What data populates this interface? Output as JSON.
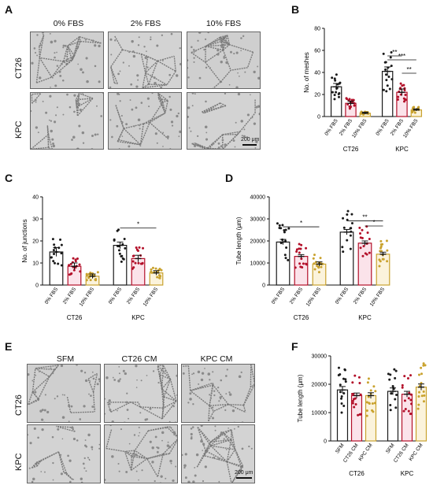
{
  "figure": {
    "panel_labels": [
      "A",
      "B",
      "C",
      "D",
      "E",
      "F"
    ]
  },
  "panel_a": {
    "columns": [
      "0% FBS",
      "2% FBS",
      "10% FBS"
    ],
    "rows": [
      "CT26",
      "KPC"
    ],
    "scale_bar": "200 μm"
  },
  "panel_e": {
    "columns": [
      "SFM",
      "CT26 CM",
      "KPC CM"
    ],
    "rows": [
      "CT26",
      "KPC"
    ],
    "scale_bar": "200 μm"
  },
  "chart_data": [
    {
      "panel": "B",
      "type": "bar",
      "ylabel": "No. of meshes",
      "ylim": [
        0,
        80
      ],
      "yticks": [
        0,
        20,
        40,
        60,
        80
      ],
      "categories": [
        "0% FBS",
        "2% FBS",
        "10% FBS",
        "0% FBS",
        "2% FBS",
        "10% FBS"
      ],
      "groups": [
        "CT26",
        "KPC"
      ],
      "values": [
        27,
        12,
        3,
        41,
        22,
        6
      ],
      "errors": [
        3,
        2,
        1,
        4,
        3,
        1
      ],
      "significance": [
        "***",
        "**",
        "**"
      ],
      "colors": [
        "#1a1a1a",
        "#b30f29",
        "#c9a22e",
        "#1a1a1a",
        "#b30f29",
        "#c9a22e"
      ]
    },
    {
      "panel": "C",
      "type": "bar",
      "ylabel": "No. of junctions",
      "ylim": [
        0,
        40
      ],
      "yticks": [
        0,
        10,
        20,
        30,
        40
      ],
      "categories": [
        "0% FBS",
        "2% FBS",
        "10% FBS",
        "0% FBS",
        "2% FBS",
        "10% FBS"
      ],
      "groups": [
        "CT26",
        "KPC"
      ],
      "values": [
        15,
        8.5,
        4,
        18,
        12,
        5.5
      ],
      "errors": [
        2,
        1.5,
        1,
        1.5,
        1.5,
        1
      ],
      "significance": [
        "*"
      ],
      "colors": [
        "#1a1a1a",
        "#b30f29",
        "#c9a22e",
        "#1a1a1a",
        "#b30f29",
        "#c9a22e"
      ]
    },
    {
      "panel": "D",
      "type": "bar",
      "ylabel": "Tube length (μm)",
      "ylim": [
        0,
        40000
      ],
      "yticks": [
        0,
        10000,
        20000,
        30000,
        40000
      ],
      "categories": [
        "0% FBS",
        "2% FBS",
        "10% FBS",
        "0% FBS",
        "2% FBS",
        "10% FBS"
      ],
      "groups": [
        "CT26",
        "KPC"
      ],
      "values": [
        19500,
        13000,
        9500,
        24000,
        19000,
        14000
      ],
      "errors": [
        1200,
        800,
        1000,
        1200,
        1000,
        900
      ],
      "significance": [
        "*",
        "**",
        "*"
      ],
      "colors": [
        "#1a1a1a",
        "#b30f29",
        "#c9a22e",
        "#1a1a1a",
        "#b30f29",
        "#c9a22e"
      ]
    },
    {
      "panel": "F",
      "type": "bar",
      "ylabel": "Tube length (μm)",
      "ylim": [
        0,
        30000
      ],
      "yticks": [
        0,
        10000,
        20000,
        30000
      ],
      "categories": [
        "SFM",
        "CT26 CM",
        "KPC CM",
        "SFM",
        "CT26 CM",
        "KPC CM"
      ],
      "groups": [
        "CT26",
        "KPC"
      ],
      "values": [
        18000,
        16000,
        16000,
        17500,
        16500,
        19000
      ],
      "errors": [
        1200,
        900,
        1000,
        1200,
        1000,
        1100
      ],
      "significance": [],
      "colors": [
        "#1a1a1a",
        "#b30f29",
        "#c9a22e",
        "#1a1a1a",
        "#b30f29",
        "#c9a22e"
      ]
    }
  ]
}
